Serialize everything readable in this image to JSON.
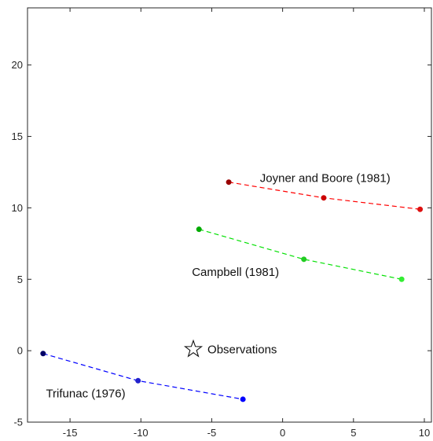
{
  "chart_data": {
    "type": "scatter",
    "title": "",
    "xlabel": "",
    "ylabel": "",
    "xlim": [
      -18,
      10.5
    ],
    "ylim": [
      -5,
      24
    ],
    "box": true,
    "grid": false,
    "x_ticks": [
      -15,
      -10,
      -5,
      0,
      5,
      10
    ],
    "y_ticks": [
      -5,
      0,
      5,
      10,
      15,
      20
    ],
    "series": [
      {
        "name": "Joyner and Boore (1981)",
        "color": "#ff0000",
        "marker_colors": [
          "#990000",
          "#cc0000",
          "#dd1111"
        ],
        "x": [
          -3.8,
          2.9,
          9.7
        ],
        "y": [
          11.8,
          10.7,
          9.9
        ]
      },
      {
        "name": "Campbell (1981)",
        "color": "#00e000",
        "marker_colors": [
          "#00aa00",
          "#22cc22",
          "#33ee33"
        ],
        "x": [
          -5.9,
          1.5,
          8.4
        ],
        "y": [
          8.5,
          6.4,
          5.0
        ]
      },
      {
        "name": "Trifunac (1976)",
        "color": "#0000ff",
        "marker_colors": [
          "#000066",
          "#2222cc",
          "#0000ff"
        ],
        "x": [
          -16.9,
          -10.2,
          -2.8
        ],
        "y": [
          -0.2,
          -2.1,
          -3.4
        ]
      }
    ],
    "annotations": [
      {
        "text": "Joyner and Boore (1981)",
        "x": -1.6,
        "y": 12.1
      },
      {
        "text": "Campbell (1981)",
        "x": -6.4,
        "y": 5.5
      },
      {
        "text": "Trifunac (1976)",
        "x": -16.7,
        "y": -3.0
      },
      {
        "text": "Observations",
        "x": -5.3,
        "y": 0.1
      }
    ],
    "observation_marker": {
      "symbol": "star",
      "x": -6.3,
      "y": 0.1
    }
  }
}
